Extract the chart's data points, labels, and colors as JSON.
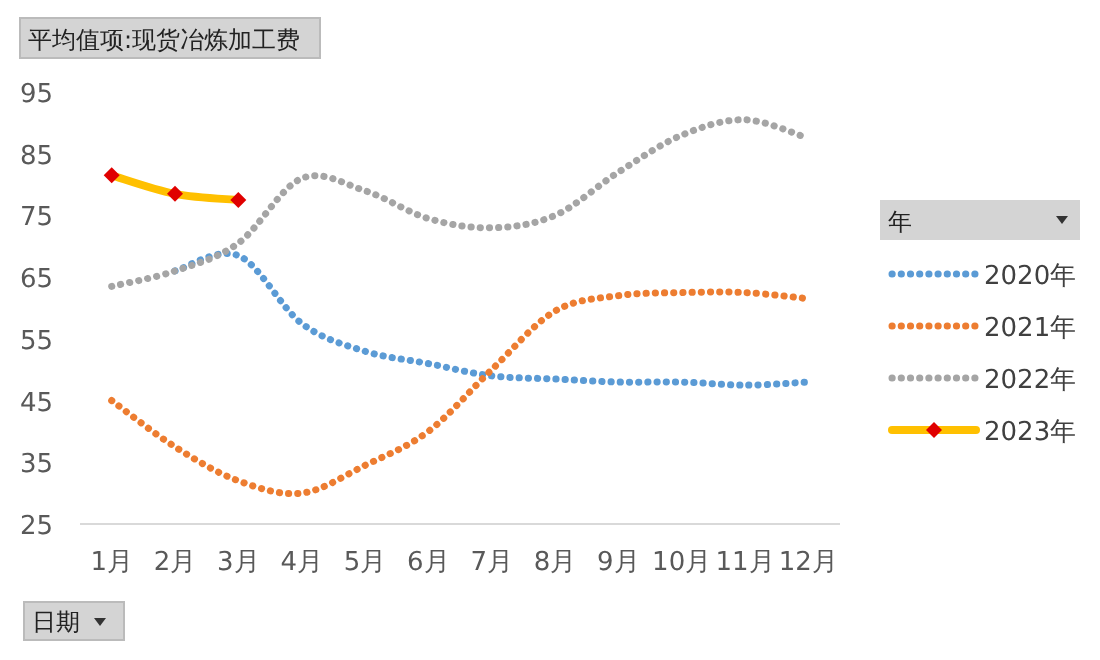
{
  "chart_data": {
    "type": "line",
    "title": "平均值项:现货冶炼加工费",
    "xlabel": "日期",
    "legend_title": "年",
    "categories": [
      "1月",
      "2月",
      "3月",
      "4月",
      "5月",
      "6月",
      "7月",
      "8月",
      "9月",
      "10月",
      "11月",
      "12月"
    ],
    "ylim": [
      25,
      95
    ],
    "yticks": [
      25,
      35,
      45,
      55,
      65,
      75,
      85,
      95
    ],
    "grid": false,
    "legend": "right",
    "series": [
      {
        "name": "2020年",
        "color": "#5b9bd5",
        "line_style": "dotted",
        "marker": "none",
        "values": [
          null,
          66,
          68.5,
          57.5,
          53,
          51,
          49,
          48.5,
          48,
          48,
          47.5,
          48
        ]
      },
      {
        "name": "2021年",
        "color": "#ed7d31",
        "line_style": "dotted",
        "marker": "none",
        "values": [
          45,
          37.5,
          32,
          30,
          34.5,
          40,
          50,
          59.5,
          62,
          62.5,
          62.5,
          61.5
        ]
      },
      {
        "name": "2022年",
        "color": "#a5a5a5",
        "line_style": "dotted",
        "marker": "none",
        "values": [
          63.5,
          66,
          70.5,
          81,
          79,
          74.5,
          73,
          75,
          82,
          88,
          90.5,
          87.5
        ]
      },
      {
        "name": "2023年",
        "color": "#ffc000",
        "line_style": "solid",
        "marker": "diamond",
        "values": [
          81.5,
          78.5,
          77.5,
          null,
          null,
          null,
          null,
          null,
          null,
          null,
          null,
          null
        ]
      }
    ]
  }
}
